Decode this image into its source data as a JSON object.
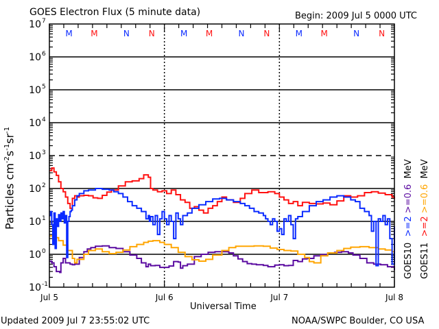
{
  "header": {
    "title": "GOES Electron Flux (5 minute data)",
    "begin": "Begin: 2009 Jul 5 0000 UTC"
  },
  "footer": {
    "updated": "Updated 2009 Jul  7 23:55:02 UTC",
    "source": "NOAA/SWPC Boulder, CO USA"
  },
  "colors": {
    "goes10_2mev": "#0a2aff",
    "goes11_2mev": "#ff1010",
    "goes10_06mev": "#5a0aa0",
    "goes11_06mev": "#ffa500",
    "midnight_marker": "#0a2aff",
    "noon_marker": "#ff1010"
  },
  "chart_data": {
    "type": "line",
    "title": "GOES Electron Flux (5 minute data)",
    "xlabel": "Universal Time",
    "ylabel": "Particles cm-2 s-1 sr-1",
    "ylabel_parts": {
      "base": "Particles cm",
      "e1": "-2",
      "s": "s",
      "e2": "-1",
      "sr": "sr",
      "e3": "-1"
    },
    "yscale": "log",
    "ylim_exp": [
      -1,
      7
    ],
    "y_ticks": [
      {
        "base": "10",
        "exp": "7"
      },
      {
        "base": "10",
        "exp": "6"
      },
      {
        "base": "10",
        "exp": "5"
      },
      {
        "base": "10",
        "exp": "4"
      },
      {
        "base": "10",
        "exp": "3"
      },
      {
        "base": "10",
        "exp": "2"
      },
      {
        "base": "10",
        "exp": "1"
      },
      {
        "base": "10",
        "exp": "0"
      },
      {
        "base": "10",
        "exp": "-1"
      }
    ],
    "xlim_days": [
      0,
      3
    ],
    "x_ticks": [
      "Jul 5",
      "Jul 6",
      "Jul 7",
      "Jul 8"
    ],
    "grid": {
      "solid_exp": [
        6,
        5,
        4,
        2,
        1,
        0
      ],
      "dashed_exp": [
        3
      ],
      "day_dashed": true
    },
    "top_markers": [
      {
        "label": "M",
        "day": 0.17,
        "color": "blue"
      },
      {
        "label": "M",
        "day": 0.39,
        "color": "red"
      },
      {
        "label": "N",
        "day": 0.67,
        "color": "blue"
      },
      {
        "label": "N",
        "day": 0.89,
        "color": "red"
      },
      {
        "label": "M",
        "day": 1.17,
        "color": "blue"
      },
      {
        "label": "M",
        "day": 1.39,
        "color": "red"
      },
      {
        "label": "N",
        "day": 1.67,
        "color": "blue"
      },
      {
        "label": "N",
        "day": 1.89,
        "color": "red"
      },
      {
        "label": "M",
        "day": 2.17,
        "color": "blue"
      },
      {
        "label": "M",
        "day": 2.39,
        "color": "red"
      },
      {
        "label": "N",
        "day": 2.67,
        "color": "blue"
      },
      {
        "label": "N",
        "day": 2.89,
        "color": "red"
      }
    ],
    "legend": {
      "placement": "right",
      "groups": [
        {
          "label": "GOES10",
          "entries": [
            {
              "text": ">=2",
              "color": "blue"
            },
            {
              "text": ">=0.6",
              "color": "purple"
            }
          ],
          "unit": "MeV"
        },
        {
          "label": "GOES11",
          "entries": [
            {
              "text": ">=2",
              "color": "red"
            },
            {
              "text": ">=0.6",
              "color": "orange"
            }
          ],
          "unit": "MeV"
        }
      ]
    },
    "series": [
      {
        "name": "GOES10 >=0.6 MeV",
        "color_key": "goes10_06mev",
        "x_days": [
          0,
          0.02,
          0.04,
          0.06,
          0.09,
          0.1,
          0.12,
          0.14,
          0.16,
          0.18,
          0.2,
          0.22,
          0.26,
          0.3,
          0.33,
          0.36,
          0.4,
          0.46,
          0.52,
          0.58,
          0.64,
          0.7,
          0.76,
          0.8,
          0.84,
          0.86,
          0.88,
          0.92,
          0.96,
          1.0,
          1.04,
          1.08,
          1.12,
          1.14,
          1.16,
          1.2,
          1.26,
          1.32,
          1.38,
          1.44,
          1.5,
          1.56,
          1.6,
          1.64,
          1.68,
          1.72,
          1.76,
          1.8,
          1.86,
          1.9,
          1.96,
          2.0,
          2.04,
          2.08,
          2.12,
          2.16,
          2.2,
          2.24,
          2.3,
          2.36,
          2.42,
          2.48,
          2.54,
          2.6,
          2.64,
          2.7,
          2.76,
          2.82,
          2.88,
          2.94,
          3.0
        ],
        "values": [
          0.62,
          0.55,
          0.42,
          0.3,
          0.28,
          0.55,
          0.75,
          0.55,
          0.55,
          0.5,
          0.48,
          0.5,
          0.8,
          1.2,
          1.45,
          1.6,
          1.75,
          1.8,
          1.6,
          1.5,
          1.2,
          0.95,
          0.75,
          0.55,
          0.42,
          0.5,
          0.45,
          0.46,
          0.4,
          0.4,
          0.44,
          0.6,
          0.58,
          0.38,
          0.45,
          0.5,
          0.85,
          1.0,
          1.15,
          1.2,
          1.2,
          1.1,
          0.9,
          0.72,
          0.6,
          0.52,
          0.5,
          0.48,
          0.46,
          0.42,
          0.47,
          0.48,
          0.45,
          0.46,
          0.65,
          0.6,
          0.72,
          0.75,
          0.9,
          0.98,
          1.1,
          1.15,
          1.2,
          1.1,
          0.95,
          0.75,
          0.55,
          0.5,
          0.48,
          0.42,
          0.33
        ]
      },
      {
        "name": "GOES11 >=0.6 MeV",
        "color_key": "goes11_06mev",
        "x_days": [
          0,
          0.04,
          0.08,
          0.12,
          0.16,
          0.2,
          0.22,
          0.24,
          0.3,
          0.34,
          0.4,
          0.46,
          0.52,
          0.58,
          0.64,
          0.7,
          0.76,
          0.82,
          0.86,
          0.9,
          0.96,
          1.0,
          1.06,
          1.12,
          1.18,
          1.24,
          1.3,
          1.36,
          1.42,
          1.5,
          1.56,
          1.62,
          1.7,
          1.78,
          1.86,
          1.92,
          1.98,
          2.04,
          2.1,
          2.16,
          2.22,
          2.26,
          2.3,
          2.36,
          2.42,
          2.5,
          2.56,
          2.62,
          2.7,
          2.78,
          2.86,
          2.92,
          2.98,
          3.0
        ],
        "values": [
          3.6,
          3.2,
          2.6,
          1.9,
          1.3,
          0.75,
          0.55,
          0.7,
          1.0,
          1.3,
          1.45,
          1.2,
          1.05,
          1.15,
          1.35,
          1.7,
          2.0,
          2.3,
          2.5,
          2.6,
          2.3,
          2.0,
          1.6,
          1.15,
          0.85,
          0.68,
          0.62,
          0.7,
          0.95,
          1.3,
          1.6,
          1.75,
          1.75,
          1.8,
          1.75,
          1.55,
          1.4,
          1.3,
          1.25,
          1.0,
          0.8,
          0.6,
          0.55,
          0.9,
          1.1,
          1.3,
          1.5,
          1.65,
          1.7,
          1.6,
          1.45,
          1.35,
          1.2,
          1.15
        ]
      },
      {
        "name": "GOES11 >=2 MeV",
        "color_key": "goes11_2mev",
        "x_days": [
          0,
          0.02,
          0.04,
          0.06,
          0.08,
          0.1,
          0.12,
          0.14,
          0.16,
          0.18,
          0.2,
          0.22,
          0.24,
          0.26,
          0.3,
          0.34,
          0.38,
          0.42,
          0.46,
          0.5,
          0.54,
          0.6,
          0.66,
          0.72,
          0.78,
          0.82,
          0.86,
          0.88,
          0.9,
          0.94,
          0.98,
          1.02,
          1.06,
          1.1,
          1.14,
          1.18,
          1.22,
          1.26,
          1.3,
          1.34,
          1.38,
          1.42,
          1.46,
          1.5,
          1.54,
          1.6,
          1.66,
          1.7,
          1.76,
          1.82,
          1.9,
          1.96,
          2.0,
          2.04,
          2.08,
          2.12,
          2.16,
          2.2,
          2.26,
          2.32,
          2.38,
          2.44,
          2.5,
          2.56,
          2.62,
          2.68,
          2.74,
          2.8,
          2.86,
          2.92,
          2.98,
          3.0
        ],
        "values": [
          350,
          420,
          320,
          250,
          160,
          100,
          80,
          55,
          35,
          25,
          50,
          60,
          55,
          60,
          62,
          60,
          52,
          50,
          62,
          78,
          90,
          120,
          160,
          170,
          200,
          260,
          220,
          100,
          90,
          80,
          85,
          70,
          90,
          65,
          45,
          38,
          25,
          28,
          22,
          18,
          25,
          30,
          40,
          55,
          45,
          38,
          50,
          70,
          90,
          75,
          80,
          70,
          55,
          45,
          35,
          40,
          30,
          38,
          35,
          34,
          36,
          32,
          42,
          60,
          55,
          60,
          75,
          80,
          72,
          65,
          55,
          48
        ]
      },
      {
        "name": "GOES10 >=2 MeV",
        "color_key": "goes10_2mev",
        "x_days": [
          0,
          0.01,
          0.02,
          0.03,
          0.04,
          0.05,
          0.06,
          0.07,
          0.08,
          0.09,
          0.1,
          0.11,
          0.12,
          0.13,
          0.14,
          0.15,
          0.16,
          0.17,
          0.18,
          0.19,
          0.2,
          0.22,
          0.24,
          0.26,
          0.3,
          0.34,
          0.4,
          0.46,
          0.52,
          0.56,
          0.6,
          0.64,
          0.68,
          0.72,
          0.76,
          0.8,
          0.84,
          0.86,
          0.87,
          0.88,
          0.9,
          0.92,
          0.94,
          0.96,
          0.98,
          1.0,
          1.02,
          1.04,
          1.06,
          1.08,
          1.1,
          1.12,
          1.14,
          1.16,
          1.2,
          1.24,
          1.3,
          1.36,
          1.42,
          1.48,
          1.54,
          1.6,
          1.66,
          1.7,
          1.74,
          1.78,
          1.82,
          1.86,
          1.88,
          1.9,
          1.92,
          1.94,
          1.96,
          1.98,
          2.0,
          2.02,
          2.04,
          2.06,
          2.08,
          2.1,
          2.12,
          2.14,
          2.16,
          2.2,
          2.26,
          2.32,
          2.38,
          2.44,
          2.5,
          2.56,
          2.62,
          2.66,
          2.7,
          2.74,
          2.78,
          2.8,
          2.82,
          2.84,
          2.86,
          2.88,
          2.9,
          2.92,
          2.94,
          2.96,
          2.98,
          3.0
        ],
        "values": [
          15,
          20,
          8,
          2.0,
          18,
          1.5,
          12,
          7,
          16,
          10,
          18,
          12,
          20,
          9,
          15,
          0.8,
          10,
          14,
          20,
          22,
          30,
          45,
          60,
          70,
          85,
          90,
          100,
          95,
          90,
          80,
          70,
          55,
          40,
          30,
          25,
          20,
          12,
          15,
          10,
          14,
          8,
          15,
          4,
          12,
          20,
          12,
          8,
          15,
          10,
          3,
          18,
          12,
          8,
          15,
          18,
          25,
          32,
          40,
          48,
          50,
          45,
          40,
          35,
          30,
          25,
          20,
          18,
          15,
          12,
          10,
          8,
          12,
          10,
          5,
          6,
          4,
          12,
          10,
          15,
          8,
          3,
          12,
          14,
          20,
          30,
          40,
          45,
          55,
          60,
          55,
          45,
          40,
          25,
          20,
          15,
          5,
          10,
          0.45,
          12,
          10,
          15,
          8,
          12,
          3,
          0.5,
          7
        ]
      }
    ]
  }
}
